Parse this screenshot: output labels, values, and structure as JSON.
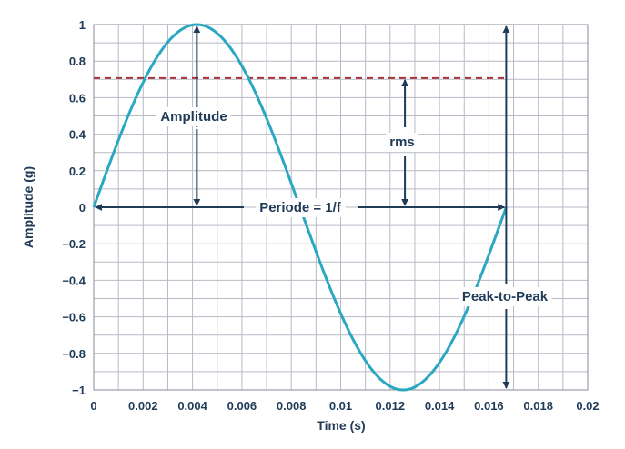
{
  "chart_data": {
    "type": "line",
    "title": "",
    "xlabel": "Time (s)",
    "ylabel": "Amplitude (g)",
    "xlim": [
      0,
      0.02
    ],
    "ylim": [
      -1,
      1
    ],
    "grid": true,
    "x_ticks": [
      "0",
      "0.002",
      "0.004",
      "0.006",
      "0.008",
      "0.01",
      "0.012",
      "0.014",
      "0.016",
      "0.018",
      "0.02"
    ],
    "y_ticks": [
      "1",
      "0.8",
      "0.6",
      "0.4",
      "0.2",
      "0",
      "−0.2",
      "−0.4",
      "−0.6",
      "−0.8",
      "−1"
    ],
    "series": [
      {
        "type": "sine",
        "amplitude": 1,
        "period": 0.0167,
        "x_start": 0,
        "x_end": 0.0167,
        "color": "#2aa8c2"
      }
    ],
    "reference_lines": [
      {
        "value": 0.707,
        "x_start": 0,
        "x_end": 0.0167,
        "style": "dashed",
        "color": "#a8323a"
      }
    ],
    "annotations": {
      "amplitude": "Amplitude",
      "rms": "rms",
      "period": "Periode = 1/f",
      "peak_to_peak": "Peak-to-Peak"
    },
    "annotation_color": "#1f3b57"
  }
}
